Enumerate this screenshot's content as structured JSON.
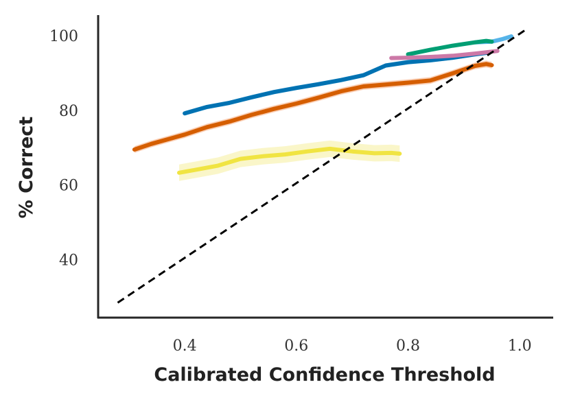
{
  "chart_data": {
    "type": "line",
    "title": "",
    "xlabel": "Calibrated Confidence Threshold",
    "ylabel": "% Correct",
    "xlim": [
      0.245,
      1.06
    ],
    "ylim": [
      24.5,
      105.5
    ],
    "x_ticks": [
      0.4,
      0.6,
      0.8,
      1.0
    ],
    "x_tick_labels": [
      "0.4",
      "0.6",
      "0.8",
      "1.0"
    ],
    "y_ticks": [
      40,
      60,
      80,
      100
    ],
    "y_tick_labels": [
      "40",
      "60",
      "80",
      "100"
    ],
    "grid": false,
    "legend": "none",
    "reference_line": {
      "style": "dashed",
      "color": "#000000",
      "x": [
        0.28,
        1.01
      ],
      "y": [
        28.5,
        101.5
      ]
    },
    "series": [
      {
        "color": "#0072B2",
        "band_color": "#56B4E9",
        "x": [
          0.4,
          0.44,
          0.48,
          0.52,
          0.56,
          0.6,
          0.64,
          0.68,
          0.72,
          0.76,
          0.8,
          0.84,
          0.88,
          0.92,
          0.94
        ],
        "y": [
          79.2,
          80.9,
          82.0,
          83.5,
          84.9,
          86.0,
          87.0,
          88.1,
          89.4,
          92.0,
          92.9,
          93.4,
          94.1,
          95.0,
          95.4
        ],
        "band": 0.6
      },
      {
        "color": "#D55E00",
        "band_color": "#F5A06E",
        "x": [
          0.31,
          0.34,
          0.4,
          0.44,
          0.48,
          0.52,
          0.56,
          0.6,
          0.64,
          0.68,
          0.72,
          0.76,
          0.8,
          0.84,
          0.88,
          0.92,
          0.94,
          0.95
        ],
        "y": [
          69.5,
          71.0,
          73.5,
          75.5,
          77.0,
          78.8,
          80.4,
          81.8,
          83.4,
          85.1,
          86.4,
          86.9,
          87.4,
          88.0,
          89.9,
          91.9,
          92.4,
          92.1
        ],
        "band": 0.9
      },
      {
        "color": "#F0E442",
        "band_color": "#F6EE94",
        "x": [
          0.39,
          0.42,
          0.46,
          0.5,
          0.54,
          0.58,
          0.62,
          0.66,
          0.7,
          0.74,
          0.77,
          0.785
        ],
        "y": [
          63.3,
          64.1,
          65.2,
          67.0,
          67.7,
          68.2,
          69.0,
          69.7,
          69.0,
          68.5,
          68.6,
          68.4
        ],
        "band": 2.2
      },
      {
        "color": "#56B4E9",
        "band_color": "#A9D8F3",
        "x": [
          0.92,
          0.95,
          0.97,
          0.985
        ],
        "y": [
          98.2,
          98.4,
          99.1,
          99.8
        ],
        "band": 0.3
      },
      {
        "color": "#009E73",
        "band_color": "#7FD0B9",
        "x": [
          0.8,
          0.84,
          0.88,
          0.92,
          0.94,
          0.95
        ],
        "y": [
          95.0,
          96.2,
          97.3,
          98.2,
          98.6,
          98.4
        ],
        "band": 0.2
      },
      {
        "color": "#CC79A7",
        "band_color": "#E6BCD3",
        "x": [
          0.77,
          0.8,
          0.84,
          0.88,
          0.92,
          0.96
        ],
        "y": [
          94.0,
          94.1,
          94.3,
          94.6,
          95.2,
          95.9
        ],
        "band": 0.2
      }
    ]
  }
}
